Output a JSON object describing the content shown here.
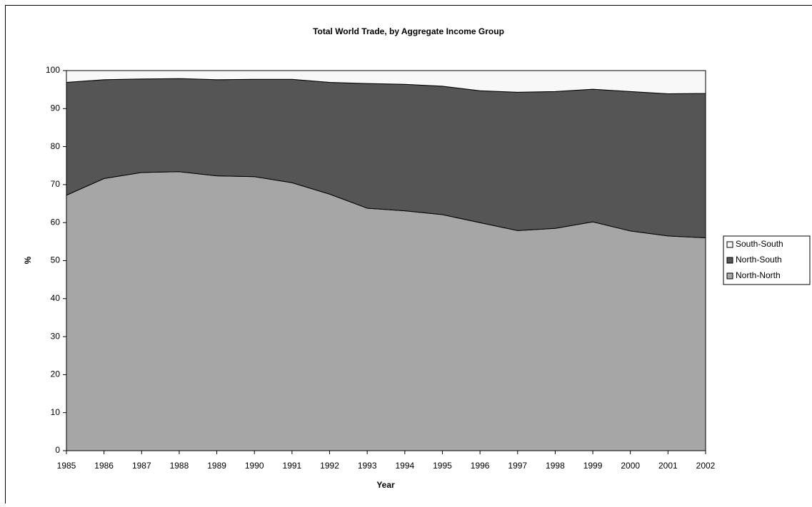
{
  "chart_data": {
    "type": "stacked-area",
    "title": "Total World Trade, by Aggregate Income Group",
    "x_label": "Year",
    "y_label": "%",
    "categories": [
      "1985",
      "1986",
      "1987",
      "1988",
      "1989",
      "1990",
      "1991",
      "1992",
      "1993",
      "1994",
      "1995",
      "1996",
      "1997",
      "1998",
      "1999",
      "2000",
      "2001",
      "2002"
    ],
    "series": [
      {
        "name": "North-North",
        "color": "#a6a6a6",
        "values": [
          67.2,
          71.6,
          73.2,
          73.4,
          72.3,
          72.1,
          70.5,
          67.5,
          63.8,
          63.1,
          62.1,
          60.0,
          57.9,
          58.5,
          60.2,
          57.8,
          56.5,
          56.0
        ]
      },
      {
        "name": "North-South",
        "color": "#555555",
        "values": [
          29.7,
          26.0,
          24.6,
          24.5,
          25.3,
          25.6,
          27.2,
          29.4,
          32.8,
          33.3,
          33.8,
          34.7,
          36.4,
          36.0,
          34.9,
          36.7,
          37.4,
          38.0
        ]
      },
      {
        "name": "South-South",
        "color": "#f8f8f8",
        "values": [
          3.1,
          2.4,
          2.2,
          2.1,
          2.4,
          2.3,
          2.3,
          3.1,
          3.4,
          3.6,
          4.1,
          5.3,
          5.7,
          5.5,
          4.9,
          5.5,
          6.1,
          6.0
        ]
      }
    ],
    "ylim": [
      0,
      100
    ],
    "yticks": [
      0,
      10,
      20,
      30,
      40,
      50,
      60,
      70,
      80,
      90,
      100
    ],
    "legend": "right"
  }
}
